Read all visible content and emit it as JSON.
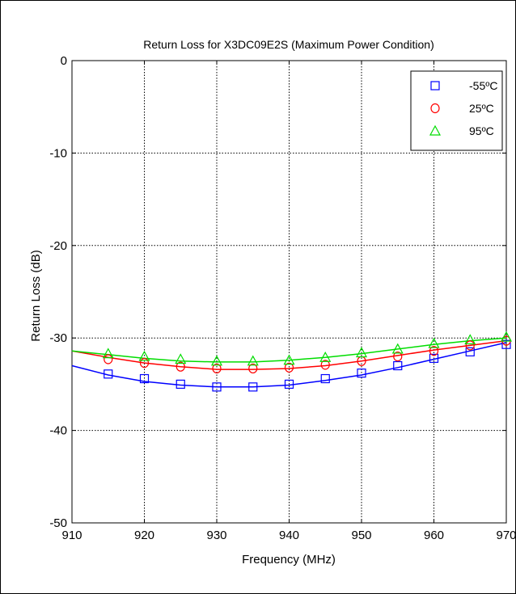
{
  "chart_data": {
    "type": "line",
    "title": "Return Loss for X3DC09E2S (Maximum Power Condition)",
    "xlabel": "Frequency (MHz)",
    "ylabel": "Return Loss (dB)",
    "xlim": [
      910,
      970
    ],
    "ylim": [
      -50,
      0
    ],
    "xticks": [
      910,
      920,
      930,
      940,
      950,
      960,
      970
    ],
    "yticks": [
      0,
      -10,
      -20,
      -30,
      -40,
      -50
    ],
    "grid": true,
    "legend_position": "top-right",
    "series": [
      {
        "name": "-55ºC",
        "color": "#0000ff",
        "marker": "square",
        "marker_x": [
          915,
          920,
          925,
          930,
          935,
          940,
          945,
          950,
          955,
          960,
          965,
          970
        ],
        "marker_y": [
          -33.9,
          -34.4,
          -35.0,
          -35.3,
          -35.3,
          -35.0,
          -34.4,
          -33.8,
          -33.0,
          -32.2,
          -31.5,
          -30.7
        ],
        "line_x": [
          910,
          915,
          920,
          925,
          930,
          935,
          940,
          945,
          950,
          955,
          960,
          965,
          970
        ],
        "line_y": [
          -33.0,
          -34.0,
          -34.7,
          -35.1,
          -35.3,
          -35.3,
          -35.1,
          -34.6,
          -34.0,
          -33.2,
          -32.3,
          -31.4,
          -30.5
        ]
      },
      {
        "name": "25ºC",
        "color": "#ff0000",
        "marker": "circle",
        "marker_x": [
          915,
          920,
          925,
          930,
          935,
          940,
          945,
          950,
          955,
          960,
          965,
          970
        ],
        "marker_y": [
          -32.3,
          -32.7,
          -33.1,
          -33.3,
          -33.3,
          -33.2,
          -32.9,
          -32.5,
          -32.0,
          -31.4,
          -30.8,
          -30.3
        ],
        "line_x": [
          910,
          915,
          920,
          925,
          930,
          935,
          940,
          945,
          950,
          955,
          960,
          965,
          970
        ],
        "line_y": [
          -31.4,
          -32.1,
          -32.7,
          -33.1,
          -33.4,
          -33.4,
          -33.3,
          -33.0,
          -32.5,
          -31.9,
          -31.3,
          -30.8,
          -30.3
        ]
      },
      {
        "name": "95ºC",
        "color": "#00dd00",
        "marker": "triangle",
        "marker_x": [
          915,
          920,
          925,
          930,
          935,
          940,
          945,
          950,
          955,
          960,
          965,
          970
        ],
        "marker_y": [
          -31.7,
          -32.0,
          -32.3,
          -32.5,
          -32.5,
          -32.4,
          -32.1,
          -31.6,
          -31.2,
          -30.6,
          -30.2,
          -29.9
        ],
        "line_x": [
          910,
          915,
          920,
          925,
          930,
          935,
          940,
          945,
          950,
          955,
          960,
          965,
          970
        ],
        "line_y": [
          -31.4,
          -31.8,
          -32.2,
          -32.5,
          -32.6,
          -32.6,
          -32.4,
          -32.1,
          -31.7,
          -31.2,
          -30.7,
          -30.3,
          -30.0
        ]
      }
    ]
  }
}
